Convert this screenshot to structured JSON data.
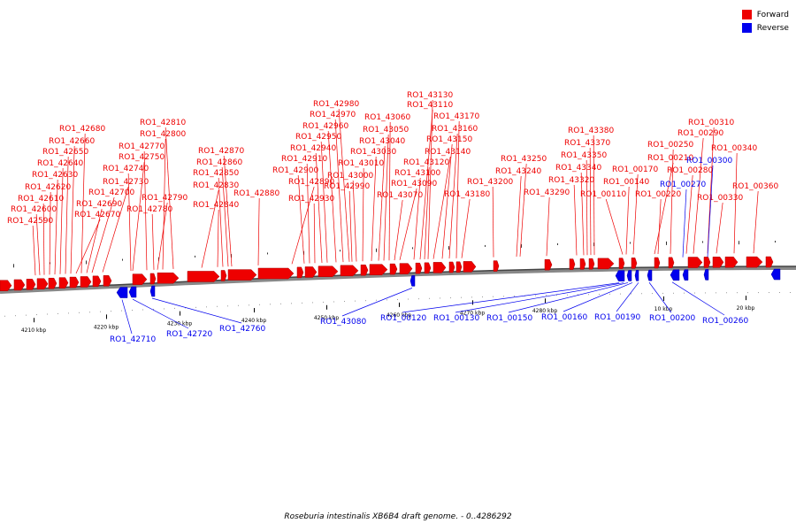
{
  "legend": {
    "forward_label": "Forward",
    "reverse_label": "Reverse",
    "forward_color": "#ee0000",
    "reverse_color": "#0000ee"
  },
  "caption": "Roseburia intestinalis XB6B4 draft genome. - 0..4286292",
  "ticks": [
    "4210 kbp",
    "4220 kbp",
    "4230 kbp",
    "4240 kbp",
    "4250 kbp",
    "4260 kbp",
    "4270 kbp",
    "4280 kbp",
    "10 kbp",
    "20 kbp"
  ],
  "forward_labels": [
    "RO1_42590",
    "RO1_42600",
    "RO1_42610",
    "RO1_42620",
    "RO1_42630",
    "RO1_42640",
    "RO1_42650",
    "RO1_42660",
    "RO1_42670",
    "RO1_42680",
    "RO1_42690",
    "RO1_42700",
    "RO1_42730",
    "RO1_42740",
    "RO1_42750",
    "RO1_42770",
    "RO1_42780",
    "RO1_42790",
    "RO1_42800",
    "RO1_42810",
    "RO1_42830",
    "RO1_42840",
    "RO1_42850",
    "RO1_42860",
    "RO1_42870",
    "RO1_42880",
    "RO1_42890",
    "RO1_42900",
    "RO1_42910",
    "RO1_42930",
    "RO1_42940",
    "RO1_42950",
    "RO1_42960",
    "RO1_42970",
    "RO1_42980",
    "RO1_42990",
    "RO1_43000",
    "RO1_43010",
    "RO1_43030",
    "RO1_43040",
    "RO1_43050",
    "RO1_43060",
    "RO1_43070",
    "RO1_43090",
    "RO1_43100",
    "RO1_43110",
    "RO1_43120",
    "RO1_43130",
    "RO1_43140",
    "RO1_43150",
    "RO1_43160",
    "RO1_43170",
    "RO1_43180",
    "RO1_43200",
    "RO1_43240",
    "RO1_43250",
    "RO1_43290",
    "RO1_43320",
    "RO1_43340",
    "RO1_43350",
    "RO1_43370",
    "RO1_43380",
    "RO1_00110",
    "RO1_00140",
    "RO1_00170",
    "RO1_00210",
    "RO1_00220",
    "RO1_00250",
    "RO1_00280",
    "RO1_00290",
    "RO1_00310",
    "RO1_00330",
    "RO1_00340",
    "RO1_00360"
  ],
  "reverse_labels_top": [
    "RO1_00270",
    "RO1_00300"
  ],
  "reverse_labels_bottom": [
    "RO1_42710",
    "RO1_42720",
    "RO1_42760",
    "RO1_43080",
    "RO1_00120",
    "RO1_00130",
    "RO1_00150",
    "RO1_00160",
    "RO1_00190",
    "RO1_00200",
    "RO1_00260"
  ]
}
